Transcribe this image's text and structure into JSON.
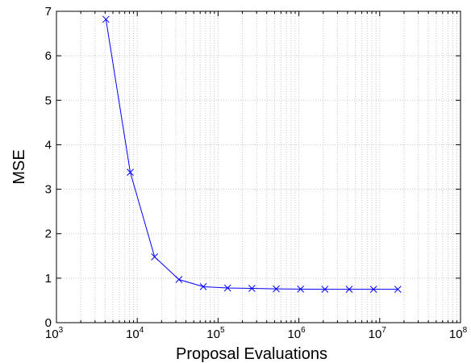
{
  "chart_data": {
    "type": "line",
    "title": "",
    "xlabel": "Proposal Evaluations",
    "ylabel": "MSE",
    "xscale": "log",
    "xlim": [
      1000,
      100000000
    ],
    "ylim": [
      0,
      7
    ],
    "grid": true,
    "grid_style": "dotted",
    "x_ticks": [
      {
        "base": "10",
        "exp": "3"
      },
      {
        "base": "10",
        "exp": "4"
      },
      {
        "base": "10",
        "exp": "5"
      },
      {
        "base": "10",
        "exp": "6"
      },
      {
        "base": "10",
        "exp": "7"
      },
      {
        "base": "10",
        "exp": "8"
      }
    ],
    "y_ticks": [
      "0",
      "1",
      "2",
      "3",
      "4",
      "5",
      "6",
      "7"
    ],
    "series": [
      {
        "color": "#0000ff",
        "marker": "x",
        "x": [
          4096,
          8192,
          16384,
          32768,
          65536,
          131072,
          262144,
          524288,
          1048576,
          2097152,
          4194304,
          8388608,
          16777216
        ],
        "y": [
          6.82,
          3.38,
          1.48,
          0.97,
          0.81,
          0.78,
          0.77,
          0.76,
          0.755,
          0.75,
          0.75,
          0.75,
          0.75
        ]
      }
    ]
  }
}
